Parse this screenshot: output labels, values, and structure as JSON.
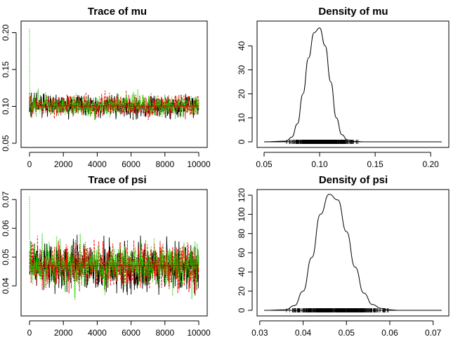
{
  "chart_data": [
    {
      "panel": "trace-mu",
      "type": "line",
      "title": "Trace of mu",
      "xlabel": "",
      "ylabel": "",
      "xlim": [
        0,
        10000
      ],
      "ylim": [
        0.05,
        0.21
      ],
      "xticks": [
        0,
        2000,
        4000,
        6000,
        8000,
        10000
      ],
      "xtick_labels": [
        "0",
        "2000",
        "4000",
        "6000",
        "8000",
        "10000"
      ],
      "yticks": [
        0.05,
        0.1,
        0.15,
        0.2
      ],
      "ytick_labels": [
        "0.05",
        "0.10",
        "0.15",
        "0.20"
      ],
      "grid": false,
      "series": [
        {
          "chain": 1,
          "color": "#000000",
          "dash": "solid",
          "center": 0.1005,
          "spread": 0.0068,
          "start": 0.092
        },
        {
          "chain": 2,
          "color": "#ff0000",
          "dash": "dashed",
          "center": 0.1005,
          "spread": 0.007,
          "start": 0.118
        },
        {
          "chain": 3,
          "color": "#22cc00",
          "dash": "dotted",
          "center": 0.1005,
          "spread": 0.0068,
          "start": 0.205
        }
      ],
      "running_mean": 0.1005
    },
    {
      "panel": "density-mu",
      "type": "line",
      "title": "Density of mu",
      "xlabel": "",
      "ylabel": "",
      "xlim": [
        0.05,
        0.21
      ],
      "ylim": [
        0,
        48
      ],
      "xticks": [
        0.05,
        0.1,
        0.15,
        0.2
      ],
      "xtick_labels": [
        "0.05",
        "0.10",
        "0.15",
        "0.20"
      ],
      "yticks": [
        0,
        10,
        20,
        30,
        40
      ],
      "ytick_labels": [
        "0",
        "10",
        "20",
        "30",
        "40"
      ],
      "grid": false,
      "density": {
        "x": [
          0.05,
          0.07,
          0.075,
          0.08,
          0.085,
          0.09,
          0.095,
          0.1,
          0.105,
          0.11,
          0.115,
          0.12,
          0.125,
          0.13,
          0.14,
          0.21
        ],
        "y": [
          0,
          0.3,
          2,
          7.5,
          20,
          35,
          45.5,
          47.5,
          40,
          25,
          10,
          3,
          0.8,
          0.2,
          0,
          0
        ]
      },
      "rug_range": [
        0.07,
        0.135
      ]
    },
    {
      "panel": "trace-psi",
      "type": "line",
      "title": "Trace of psi",
      "xlabel": "",
      "ylabel": "",
      "xlim": [
        0,
        10000
      ],
      "ylim": [
        0.031,
        0.072
      ],
      "xticks": [
        0,
        2000,
        4000,
        6000,
        8000,
        10000
      ],
      "xtick_labels": [
        "0",
        "2000",
        "4000",
        "6000",
        "8000",
        "10000"
      ],
      "yticks": [
        0.04,
        0.05,
        0.06,
        0.07
      ],
      "ytick_labels": [
        "0.04",
        "0.05",
        "0.06",
        "0.07"
      ],
      "grid": false,
      "series": [
        {
          "chain": 1,
          "color": "#000000",
          "dash": "solid",
          "center": 0.047,
          "spread": 0.0036,
          "start": 0.045
        },
        {
          "chain": 2,
          "color": "#ff0000",
          "dash": "dashed",
          "center": 0.047,
          "spread": 0.0036,
          "start": 0.052
        },
        {
          "chain": 3,
          "color": "#22cc00",
          "dash": "dotted",
          "center": 0.047,
          "spread": 0.0036,
          "start": 0.071
        }
      ],
      "running_mean": 0.047
    },
    {
      "panel": "density-psi",
      "type": "line",
      "title": "Density of psi",
      "xlabel": "",
      "ylabel": "",
      "xlim": [
        0.031,
        0.072
      ],
      "ylim": [
        0,
        120
      ],
      "xticks": [
        0.03,
        0.04,
        0.05,
        0.06,
        0.07
      ],
      "xtick_labels": [
        "0.03",
        "0.04",
        "0.05",
        "0.06",
        "0.07"
      ],
      "yticks": [
        0,
        20,
        40,
        60,
        80,
        100,
        120
      ],
      "ytick_labels": [
        "0",
        "20",
        "40",
        "60",
        "80",
        "100",
        "120"
      ],
      "grid": false,
      "density": {
        "x": [
          0.031,
          0.036,
          0.038,
          0.04,
          0.042,
          0.044,
          0.046,
          0.048,
          0.05,
          0.052,
          0.054,
          0.056,
          0.058,
          0.06,
          0.062,
          0.072
        ],
        "y": [
          0,
          0.5,
          5,
          20,
          55,
          100,
          121,
          115,
          82,
          45,
          18,
          6,
          2,
          0.5,
          0,
          0
        ]
      },
      "rug_range": [
        0.036,
        0.06
      ]
    }
  ]
}
